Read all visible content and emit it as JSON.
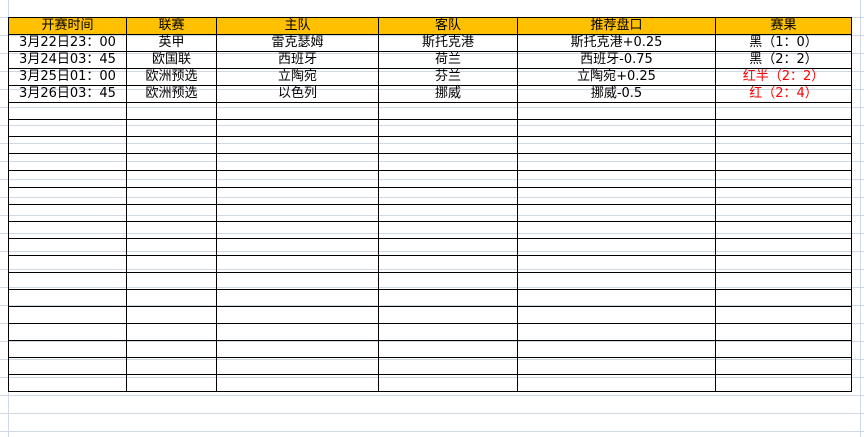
{
  "headers": [
    "开赛时间",
    "联赛",
    "主队",
    "客队",
    "推荐盘口",
    "赛果"
  ],
  "rows": [
    {
      "time": "3月22日23：00",
      "league": "英甲",
      "home": "雷克瑟姆",
      "away": "斯托克港",
      "pick": "斯托克港+0.25",
      "result": "黑（1：0）",
      "result_color": "#000000"
    },
    {
      "time": "3月24日03：45",
      "league": "欧国联",
      "home": "西班牙",
      "away": "荷兰",
      "pick": "西班牙-0.75",
      "result": "黑（2：2）",
      "result_color": "#000000"
    },
    {
      "time": "3月25日01：00",
      "league": "欧洲预选",
      "home": "立陶宛",
      "away": "芬兰",
      "pick": "立陶宛+0.25",
      "result": "红半（2：2）",
      "result_color": "#ff0000"
    },
    {
      "time": "3月26日03：45",
      "league": "欧洲预选",
      "home": "以色列",
      "away": "挪威",
      "pick": "挪威-0.5",
      "result": "红（2：4）",
      "result_color": "#ff0000"
    }
  ],
  "empty_rows": 17,
  "colors": {
    "header_bg": "#ffc000",
    "gridline": "#d0d7e5",
    "loss": "#000000",
    "win": "#ff0000"
  }
}
